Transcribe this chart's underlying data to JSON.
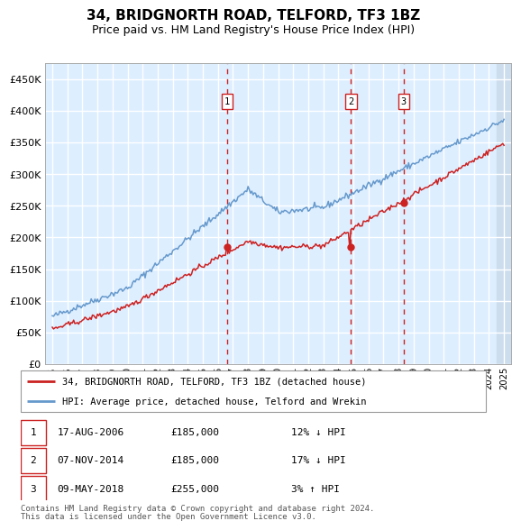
{
  "title": "34, BRIDGNORTH ROAD, TELFORD, TF3 1BZ",
  "subtitle": "Price paid vs. HM Land Registry's House Price Index (HPI)",
  "legend_line1": "34, BRIDGNORTH ROAD, TELFORD, TF3 1BZ (detached house)",
  "legend_line2": "HPI: Average price, detached house, Telford and Wrekin",
  "footnote1": "Contains HM Land Registry data © Crown copyright and database right 2024.",
  "footnote2": "This data is licensed under the Open Government Licence v3.0.",
  "transactions": [
    {
      "num": 1,
      "date": "17-AUG-2006",
      "price": 185000,
      "pct": "12%",
      "dir": "↓",
      "year": 2006.625
    },
    {
      "num": 2,
      "date": "07-NOV-2014",
      "price": 185000,
      "pct": "17%",
      "dir": "↓",
      "year": 2014.833
    },
    {
      "num": 3,
      "date": "09-MAY-2018",
      "price": 255000,
      "pct": "3%",
      "dir": "↑",
      "year": 2018.333
    }
  ],
  "hpi_color": "#6699cc",
  "price_color": "#cc2222",
  "bg_chart": "#ddeeff",
  "bg_hatch": "#ccddee",
  "grid_color": "#ffffff",
  "dashed_color": "#cc2222",
  "ylim": [
    0,
    475000
  ],
  "yticks": [
    0,
    50000,
    100000,
    150000,
    200000,
    250000,
    300000,
    350000,
    400000,
    450000
  ],
  "x_start_year": 1994.5,
  "x_end_year": 2025.5
}
